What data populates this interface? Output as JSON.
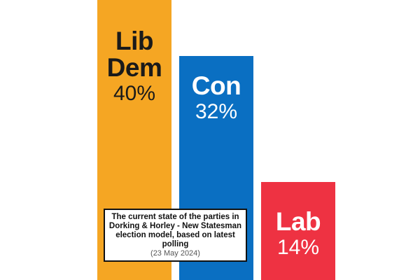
{
  "chart_data": {
    "type": "bar",
    "categories": [
      "Lib\nDem",
      "Con",
      "Lab"
    ],
    "values": [
      40,
      32,
      14
    ],
    "value_labels": [
      "40%",
      "32%",
      "14%"
    ],
    "colors": [
      "#F5A623",
      "#0A6FC2",
      "#EE3242"
    ],
    "label_colors": [
      "#1a1a1a",
      "#ffffff",
      "#ffffff"
    ],
    "ylim": [
      0,
      40
    ],
    "grid": false,
    "xlabel": "",
    "ylabel": ""
  },
  "caption": {
    "text": "The current state of the parties in Dorking & Horley - New Statesman election model, based on latest polling",
    "date": "(23 May 2024)"
  }
}
